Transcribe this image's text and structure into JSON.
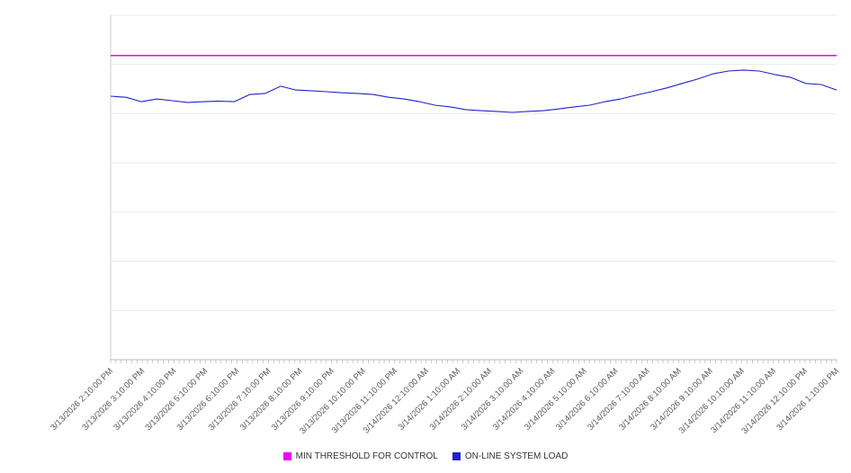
{
  "chart_data": {
    "type": "line",
    "title": "",
    "xlabel": "",
    "ylabel": "",
    "grid": true,
    "legend_position": "bottom",
    "y_axis_labels_visible": false,
    "ylim": [
      0,
      100
    ],
    "x_labels": [
      "3/13/2026 2:10:00 PM",
      "3/13/2026 3:10:00 PM",
      "3/13/2026 4:10:00 PM",
      "3/13/2026 5:10:00 PM",
      "3/13/2026 6:10:00 PM",
      "3/13/2026 7:10:00 PM",
      "3/13/2026 8:10:00 PM",
      "3/13/2026 9:10:00 PM",
      "3/13/2026 10:10:00 PM",
      "3/13/2026 11:10:00 PM",
      "3/14/2026 12:10:00 AM",
      "3/14/2026 1:10:00 AM",
      "3/14/2026 2:10:00 AM",
      "3/14/2026 3:10:00 AM",
      "3/14/2026 4:10:00 AM",
      "3/14/2026 5:10:00 AM",
      "3/14/2026 6:10:00 AM",
      "3/14/2026 7:10:00 AM",
      "3/14/2026 8:10:00 AM",
      "3/14/2026 9:10:00 AM",
      "3/14/2026 10:10:00 AM",
      "3/14/2026 11:10:00 AM",
      "3/14/2026 12:10:00 PM",
      "3/14/2026 1:10:00 PM"
    ],
    "series": [
      {
        "name": "MIN THRESHOLD FOR CONTROL",
        "color": "#ee00ee",
        "constant": true,
        "values": [
          88.3,
          88.3
        ]
      },
      {
        "name": "ON-LINE SYSTEM LOAD",
        "color": "#2222cc",
        "constant": false,
        "values": [
          76.5,
          76.2,
          74.9,
          75.7,
          75.2,
          74.7,
          74.9,
          75.1,
          74.9,
          77.0,
          77.3,
          79.4,
          78.3,
          78.1,
          77.8,
          77.5,
          77.3,
          77.0,
          76.2,
          75.7,
          74.9,
          73.9,
          73.4,
          72.6,
          72.3,
          72.1,
          71.8,
          72.1,
          72.3,
          72.8,
          73.4,
          73.9,
          74.9,
          75.7,
          76.8,
          77.8,
          78.9,
          80.2,
          81.5,
          83.0,
          83.8,
          84.1,
          83.8,
          82.8,
          82.0,
          80.2,
          79.9,
          78.3
        ]
      }
    ]
  },
  "legend": {
    "items": [
      {
        "label": "MIN THRESHOLD FOR CONTROL"
      },
      {
        "label": "ON-LINE SYSTEM LOAD"
      }
    ]
  }
}
